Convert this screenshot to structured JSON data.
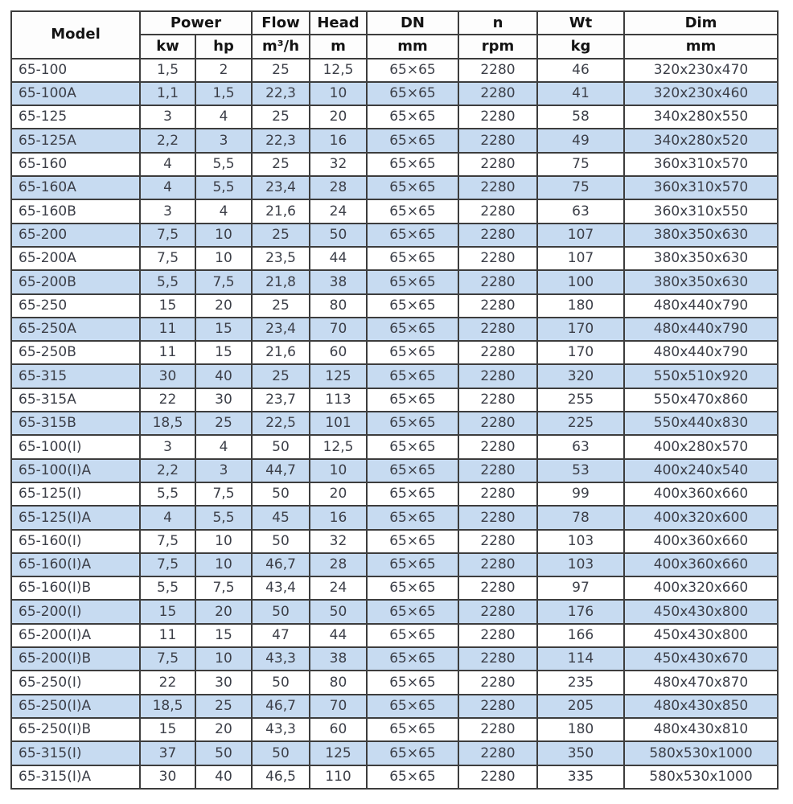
{
  "table": {
    "header": {
      "model": "Model",
      "power": "Power",
      "flow": "Flow",
      "head": "Head",
      "dn": "DN",
      "n": "n",
      "wt": "Wt",
      "dim": "Dim",
      "units": {
        "kw": "kw",
        "hp": "hp",
        "flow": "m³/h",
        "head": "m",
        "dn": "mm",
        "n": "rpm",
        "wt": "kg",
        "dim": "mm"
      }
    },
    "rows": [
      [
        "65-100",
        "1,5",
        "2",
        "25",
        "12,5",
        "65×65",
        "2280",
        "46",
        "320x230x470"
      ],
      [
        "65-100A",
        "1,1",
        "1,5",
        "22,3",
        "10",
        "65×65",
        "2280",
        "41",
        "320x230x460"
      ],
      [
        "65-125",
        "3",
        "4",
        "25",
        "20",
        "65×65",
        "2280",
        "58",
        "340x280x550"
      ],
      [
        "65-125A",
        "2,2",
        "3",
        "22,3",
        "16",
        "65×65",
        "2280",
        "49",
        "340x280x520"
      ],
      [
        "65-160",
        "4",
        "5,5",
        "25",
        "32",
        "65×65",
        "2280",
        "75",
        "360x310x570"
      ],
      [
        "65-160A",
        "4",
        "5,5",
        "23,4",
        "28",
        "65×65",
        "2280",
        "75",
        "360x310x570"
      ],
      [
        "65-160B",
        "3",
        "4",
        "21,6",
        "24",
        "65×65",
        "2280",
        "63",
        "360x310x550"
      ],
      [
        "65-200",
        "7,5",
        "10",
        "25",
        "50",
        "65×65",
        "2280",
        "107",
        "380x350x630"
      ],
      [
        "65-200A",
        "7,5",
        "10",
        "23,5",
        "44",
        "65×65",
        "2280",
        "107",
        "380x350x630"
      ],
      [
        "65-200B",
        "5,5",
        "7,5",
        "21,8",
        "38",
        "65×65",
        "2280",
        "100",
        "380x350x630"
      ],
      [
        "65-250",
        "15",
        "20",
        "25",
        "80",
        "65×65",
        "2280",
        "180",
        "480x440x790"
      ],
      [
        "65-250A",
        "11",
        "15",
        "23,4",
        "70",
        "65×65",
        "2280",
        "170",
        "480x440x790"
      ],
      [
        "65-250B",
        "11",
        "15",
        "21,6",
        "60",
        "65×65",
        "2280",
        "170",
        "480x440x790"
      ],
      [
        "65-315",
        "30",
        "40",
        "25",
        "125",
        "65×65",
        "2280",
        "320",
        "550x510x920"
      ],
      [
        "65-315A",
        "22",
        "30",
        "23,7",
        "113",
        "65×65",
        "2280",
        "255",
        "550x470x860"
      ],
      [
        "65-315B",
        "18,5",
        "25",
        "22,5",
        "101",
        "65×65",
        "2280",
        "225",
        "550x440x830"
      ],
      [
        "65-100(I)",
        "3",
        "4",
        "50",
        "12,5",
        "65×65",
        "2280",
        "63",
        "400x280x570"
      ],
      [
        "65-100(I)A",
        "2,2",
        "3",
        "44,7",
        "10",
        "65×65",
        "2280",
        "53",
        "400x240x540"
      ],
      [
        "65-125(I)",
        "5,5",
        "7,5",
        "50",
        "20",
        "65×65",
        "2280",
        "99",
        "400x360x660"
      ],
      [
        "65-125(I)A",
        "4",
        "5,5",
        "45",
        "16",
        "65×65",
        "2280",
        "78",
        "400x320x600"
      ],
      [
        "65-160(I)",
        "7,5",
        "10",
        "50",
        "32",
        "65×65",
        "2280",
        "103",
        "400x360x660"
      ],
      [
        "65-160(I)A",
        "7,5",
        "10",
        "46,7",
        "28",
        "65×65",
        "2280",
        "103",
        "400x360x660"
      ],
      [
        "65-160(I)B",
        "5,5",
        "7,5",
        "43,4",
        "24",
        "65×65",
        "2280",
        "97",
        "400x320x660"
      ],
      [
        "65-200(I)",
        "15",
        "20",
        "50",
        "50",
        "65×65",
        "2280",
        "176",
        "450x430x800"
      ],
      [
        "65-200(I)A",
        "11",
        "15",
        "47",
        "44",
        "65×65",
        "2280",
        "166",
        "450x430x800"
      ],
      [
        "65-200(I)B",
        "7,5",
        "10",
        "43,3",
        "38",
        "65×65",
        "2280",
        "114",
        "450x430x670"
      ],
      [
        "65-250(I)",
        "22",
        "30",
        "50",
        "80",
        "65×65",
        "2280",
        "235",
        "480x470x870"
      ],
      [
        "65-250(I)A",
        "18,5",
        "25",
        "46,7",
        "70",
        "65×65",
        "2280",
        "205",
        "480x430x850"
      ],
      [
        "65-250(I)B",
        "15",
        "20",
        "43,3",
        "60",
        "65×65",
        "2280",
        "180",
        "480x430x810"
      ],
      [
        "65-315(I)",
        "37",
        "50",
        "50",
        "125",
        "65×65",
        "2280",
        "350",
        "580x530x1000"
      ],
      [
        "65-315(I)A",
        "30",
        "40",
        "46,5",
        "110",
        "65×65",
        "2280",
        "335",
        "580x530x1000"
      ]
    ]
  },
  "colors": {
    "row_alt_blue": "#c7dbf1",
    "border": "#3d3d3d",
    "header_text": "#141414",
    "body_text": "#3c3f48"
  }
}
